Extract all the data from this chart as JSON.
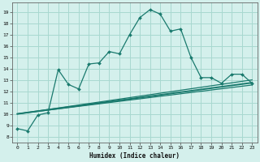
{
  "title": "",
  "xlabel": "Humidex (Indice chaleur)",
  "ylabel": "",
  "xlim": [
    -0.5,
    23.5
  ],
  "ylim": [
    7.5,
    19.8
  ],
  "yticks": [
    8,
    9,
    10,
    11,
    12,
    13,
    14,
    15,
    16,
    17,
    18,
    19
  ],
  "xticks": [
    0,
    1,
    2,
    3,
    4,
    5,
    6,
    7,
    8,
    9,
    10,
    11,
    12,
    13,
    14,
    15,
    16,
    17,
    18,
    19,
    20,
    21,
    22,
    23
  ],
  "bg_color": "#d4f0ec",
  "grid_color": "#a8d8d0",
  "line_color": "#1a7a6e",
  "main_line": {
    "x": [
      0,
      1,
      2,
      3,
      4,
      5,
      6,
      7,
      8,
      9,
      10,
      11,
      12,
      13,
      14,
      15,
      16,
      17,
      18,
      19,
      20,
      21,
      22,
      23
    ],
    "y": [
      8.7,
      8.5,
      9.9,
      10.1,
      13.9,
      12.6,
      12.2,
      14.4,
      14.5,
      15.5,
      15.3,
      17.0,
      18.5,
      19.2,
      18.8,
      17.3,
      17.5,
      15.0,
      13.2,
      13.2,
      12.7,
      13.5,
      13.5,
      12.7
    ]
  },
  "line2": {
    "x": [
      0,
      23
    ],
    "y": [
      10.0,
      12.55
    ]
  },
  "line3": {
    "x": [
      0,
      23
    ],
    "y": [
      10.0,
      12.75
    ]
  },
  "line4": {
    "x": [
      0,
      23
    ],
    "y": [
      10.0,
      13.0
    ]
  }
}
